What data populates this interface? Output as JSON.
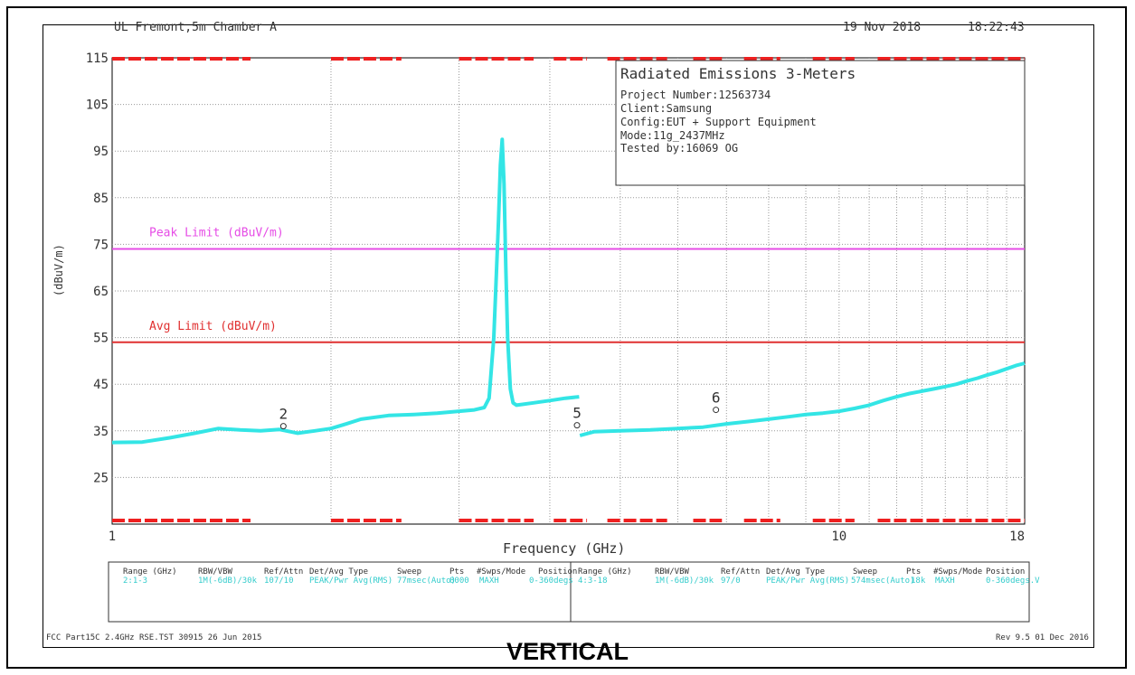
{
  "header": {
    "site": "UL Fremont,5m Chamber A",
    "date": "19 Nov 2018",
    "time": "18:22:43"
  },
  "info_box": {
    "title": "Radiated Emissions 3-Meters",
    "lines": [
      "Project Number:12563734",
      "Client:Samsung",
      "Config:EUT + Support Equipment",
      "Mode:11g_2437MHz",
      "Tested by:16069 OG"
    ]
  },
  "footer": {
    "left": "FCC Part15C 2.4GHz RSE.TST 30915 26 Jun 2015",
    "right": "Rev 9.5 01 Dec 2016"
  },
  "caption": "VERTICAL",
  "table": {
    "headers": [
      "Range (GHz)",
      "RBW/VBW",
      "Ref/Attn",
      "Det/Avg Type",
      "Sweep",
      "Pts",
      "#Swps/Mode",
      "Position"
    ],
    "rows": [
      [
        "2:1-3",
        "1M(-6dB)/30k",
        "107/10",
        "PEAK/Pwr Avg(RMS)",
        "77msec(Auto)",
        "8000",
        "MAXH",
        "0-360degs"
      ],
      [
        "4:3-18",
        "1M(-6dB)/30k",
        "97/0",
        "PEAK/Pwr Avg(RMS)",
        "574msec(Auto)",
        "18k",
        "MAXH",
        "0-360degs.V"
      ]
    ]
  },
  "colors": {
    "trace": "#33e5e5",
    "peak_limit": "#e64ce6",
    "avg_limit": "#e03030",
    "bar": "#ee2020",
    "grid": "#999999"
  },
  "chart_data": {
    "type": "line",
    "xlabel": "Frequency (GHz)",
    "ylabel": "(dBuV/m)",
    "x_scale": "log",
    "xlim": [
      1,
      18
    ],
    "ylim": [
      15,
      115
    ],
    "x_tick_labels": [
      {
        "x": 1,
        "label": "1"
      },
      {
        "x": 10,
        "label": "10"
      },
      {
        "x": 18,
        "label": "18"
      }
    ],
    "x_grid": [
      2,
      3,
      4,
      5,
      6,
      7,
      8,
      9,
      10
    ],
    "y_ticks": [
      115,
      105,
      95,
      85,
      75,
      65,
      55,
      45,
      35,
      25
    ],
    "grid": true,
    "limits": [
      {
        "name": "Peak Limit (dBuV/m)",
        "value": 74
      },
      {
        "name": "Avg Limit (dBuV/m)",
        "value": 54
      }
    ],
    "markers": [
      {
        "label": "2",
        "x": 1.72,
        "y": 36
      },
      {
        "label": "5",
        "x": 4.36,
        "y": 36.2
      },
      {
        "label": "6",
        "x": 6.77,
        "y": 39.5
      }
    ],
    "series": [
      {
        "name": "",
        "points": [
          [
            1.0,
            32.5
          ],
          [
            1.1,
            32.6
          ],
          [
            1.2,
            33.5
          ],
          [
            1.3,
            34.5
          ],
          [
            1.4,
            35.5
          ],
          [
            1.5,
            35.2
          ],
          [
            1.6,
            35.0
          ],
          [
            1.7,
            35.3
          ],
          [
            1.8,
            34.5
          ],
          [
            1.9,
            35.0
          ],
          [
            2.0,
            35.5
          ],
          [
            2.1,
            36.5
          ],
          [
            2.2,
            37.5
          ],
          [
            2.4,
            38.3
          ],
          [
            2.6,
            38.5
          ],
          [
            2.8,
            38.8
          ],
          [
            3.0,
            39.2
          ],
          [
            3.15,
            39.5
          ],
          [
            3.25,
            40.0
          ],
          [
            3.3,
            42.0
          ],
          [
            3.35,
            55.0
          ],
          [
            3.37,
            65.0
          ],
          [
            3.4,
            80.0
          ],
          [
            3.42,
            92.0
          ],
          [
            3.44,
            97.5
          ],
          [
            3.46,
            88.0
          ],
          [
            3.48,
            70.0
          ],
          [
            3.5,
            55.0
          ],
          [
            3.53,
            44.0
          ],
          [
            3.56,
            41.0
          ],
          [
            3.6,
            40.5
          ],
          [
            3.8,
            41.0
          ],
          [
            4.0,
            41.5
          ],
          [
            4.2,
            42.0
          ],
          [
            4.39,
            42.3
          ],
          [
            4.4,
            34.0
          ],
          [
            4.6,
            34.8
          ],
          [
            5.0,
            35.0
          ],
          [
            5.5,
            35.2
          ],
          [
            6.0,
            35.5
          ],
          [
            6.5,
            35.8
          ],
          [
            7.0,
            36.5
          ],
          [
            7.5,
            37.0
          ],
          [
            8.0,
            37.5
          ],
          [
            8.5,
            38.0
          ],
          [
            9.0,
            38.5
          ],
          [
            9.5,
            38.8
          ],
          [
            10.0,
            39.2
          ],
          [
            10.5,
            39.8
          ],
          [
            11.0,
            40.5
          ],
          [
            11.5,
            41.5
          ],
          [
            12.0,
            42.3
          ],
          [
            12.5,
            43.0
          ],
          [
            13.0,
            43.5
          ],
          [
            13.5,
            44.0
          ],
          [
            14.0,
            44.5
          ],
          [
            14.5,
            45.0
          ],
          [
            15.0,
            45.7
          ],
          [
            15.5,
            46.3
          ],
          [
            16.0,
            47.0
          ],
          [
            16.5,
            47.6
          ],
          [
            17.0,
            48.3
          ],
          [
            17.5,
            49.0
          ],
          [
            18.0,
            49.5
          ]
        ]
      }
    ]
  }
}
